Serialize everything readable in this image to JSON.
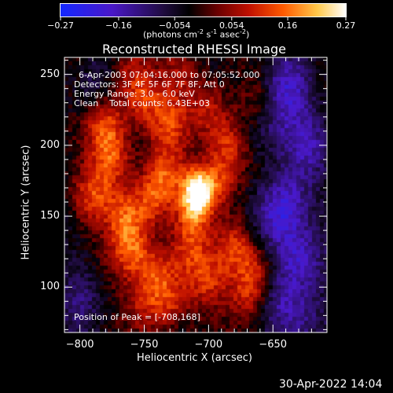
{
  "colorbar": {
    "ticks": [
      "-0.27",
      "-0.16",
      "-0.054",
      "0.054",
      "0.16",
      "0.27"
    ],
    "tick_values": [
      -0.27,
      -0.16,
      -0.054,
      0.054,
      0.16,
      0.27
    ],
    "unit_label": "(photons cm",
    "unit_exp1": "-2",
    "unit_mid": " s",
    "unit_exp2": "-1",
    "unit_mid2": " asec",
    "unit_exp3": "-2",
    "unit_end": ")",
    "colors": [
      "#1428ff",
      "#4a18c8",
      "#200c40",
      "#000000",
      "#6a0000",
      "#c01000",
      "#ff5a00",
      "#ffc84a",
      "#ffffff"
    ]
  },
  "chart_data": {
    "type": "heatmap",
    "title": "Reconstructed RHESSI Image",
    "xlabel": "Heliocentric X (arcsec)",
    "ylabel": "Heliocentric Y (arcsec)",
    "xlim": [
      -812,
      -608
    ],
    "ylim": [
      68,
      262
    ],
    "xticks": [
      -800,
      -750,
      -700,
      -650
    ],
    "xtick_labels": [
      "−800",
      "−750",
      "−700",
      "−650"
    ],
    "yticks": [
      100,
      150,
      200,
      250
    ],
    "ytick_labels": [
      "100",
      "150",
      "200",
      "250"
    ],
    "value_range": [
      -0.27,
      0.27
    ],
    "peak": [
      -708,
      168
    ],
    "annotations": {
      "line1": "6-Apr-2003 07:04:16.000 to 07:05:52.000",
      "line2": "Detectors: 3F 4F 5F 6F 7F 8F, Att 0",
      "line3": "Energy Range: 3.0 - 6.0 keV",
      "line4": "Clean    Total counts: 6.43E+03",
      "peak_text": "Position of Peak = [-708,168]"
    }
  },
  "footer": {
    "timestamp": "30-Apr-2022 14:04"
  }
}
